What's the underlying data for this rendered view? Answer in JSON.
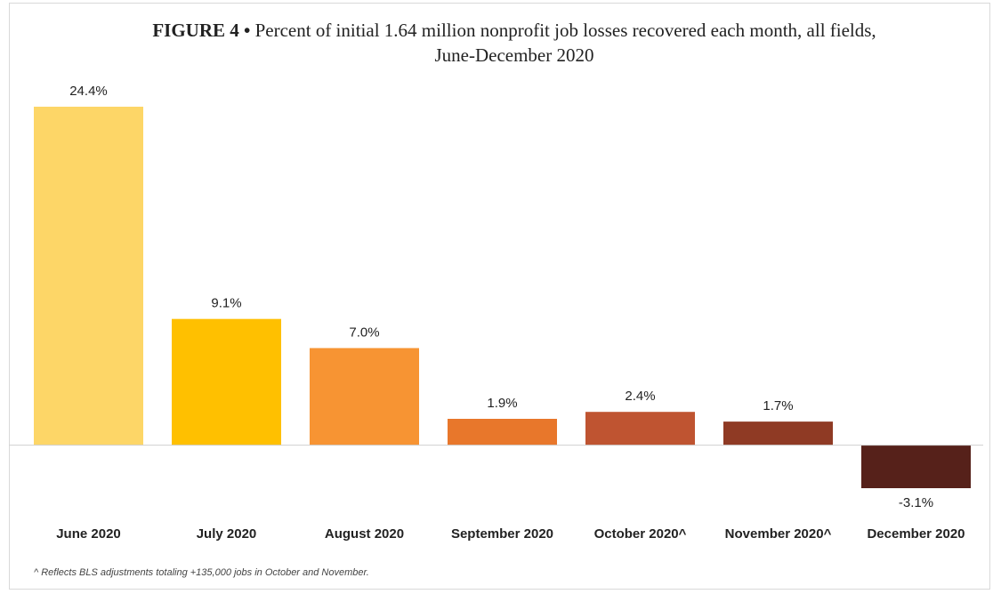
{
  "chart_data": {
    "type": "bar",
    "figure_label": "FIGURE 4 •",
    "title": "Percent of initial 1.64 million nonprofit job losses recovered each month, all fields, June-December 2020",
    "categories": [
      "June 2020",
      "July 2020",
      "August 2020",
      "September 2020",
      "October 2020^",
      "November 2020^",
      "December 2020"
    ],
    "values": [
      24.4,
      9.1,
      7.0,
      1.9,
      2.4,
      1.7,
      -3.1
    ],
    "value_labels": [
      "24.4%",
      "9.1%",
      "7.0%",
      "1.9%",
      "2.4%",
      "1.7%",
      "-3.1%"
    ],
    "colors": [
      "#FDD667",
      "#FFC000",
      "#F79433",
      "#E8772B",
      "#BF5431",
      "#8F3A24",
      "#56211A"
    ],
    "footnote": "^ Reflects BLS adjustments totaling +135,000 jobs in October and November."
  }
}
